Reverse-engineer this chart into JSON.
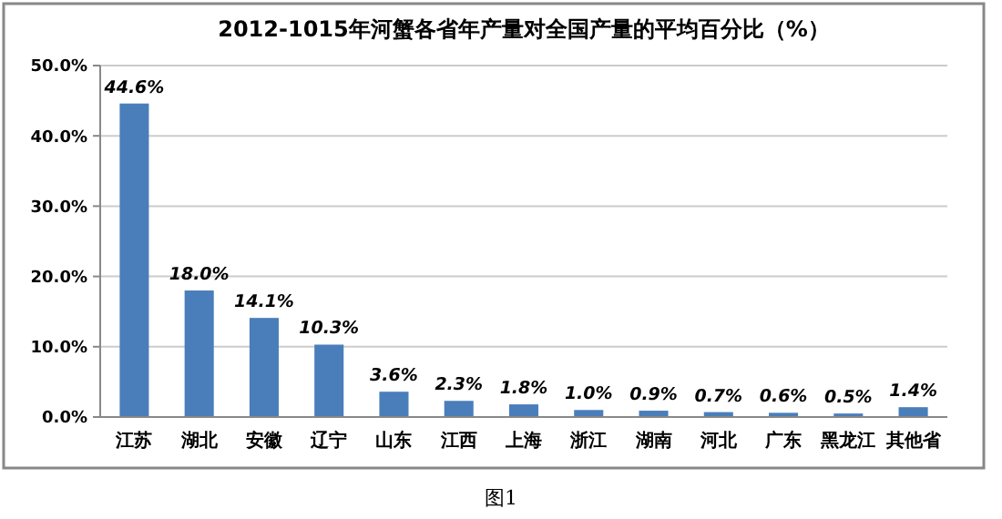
{
  "chart_data": {
    "type": "bar",
    "title": "2012-1015年河蟹各省年产量对全国产量的平均百分比（%）",
    "categories": [
      "江苏",
      "湖北",
      "安徽",
      "辽宁",
      "山东",
      "江西",
      "上海",
      "浙江",
      "湖南",
      "河北",
      "广东",
      "黑龙江",
      "其他省"
    ],
    "values": [
      44.6,
      18.0,
      14.1,
      10.3,
      3.6,
      2.3,
      1.8,
      1.0,
      0.9,
      0.7,
      0.6,
      0.5,
      1.4
    ],
    "value_labels": [
      "44.6%",
      "18.0%",
      "14.1%",
      "10.3%",
      "3.6%",
      "2.3%",
      "1.8%",
      "1.0%",
      "0.9%",
      "0.7%",
      "0.6%",
      "0.5%",
      "1.4%"
    ],
    "color": "#4a7ebb",
    "ylim": [
      0,
      50
    ],
    "yticks": [
      {
        "value": 0,
        "label": "0.0%"
      },
      {
        "value": 10,
        "label": "10.0%"
      },
      {
        "value": 20,
        "label": "20.0%"
      },
      {
        "value": 30,
        "label": "30.0%"
      },
      {
        "value": 40,
        "label": "40.0%"
      },
      {
        "value": 50,
        "label": "50.0%"
      }
    ],
    "grid": "y",
    "annotations": [
      "图1"
    ]
  }
}
